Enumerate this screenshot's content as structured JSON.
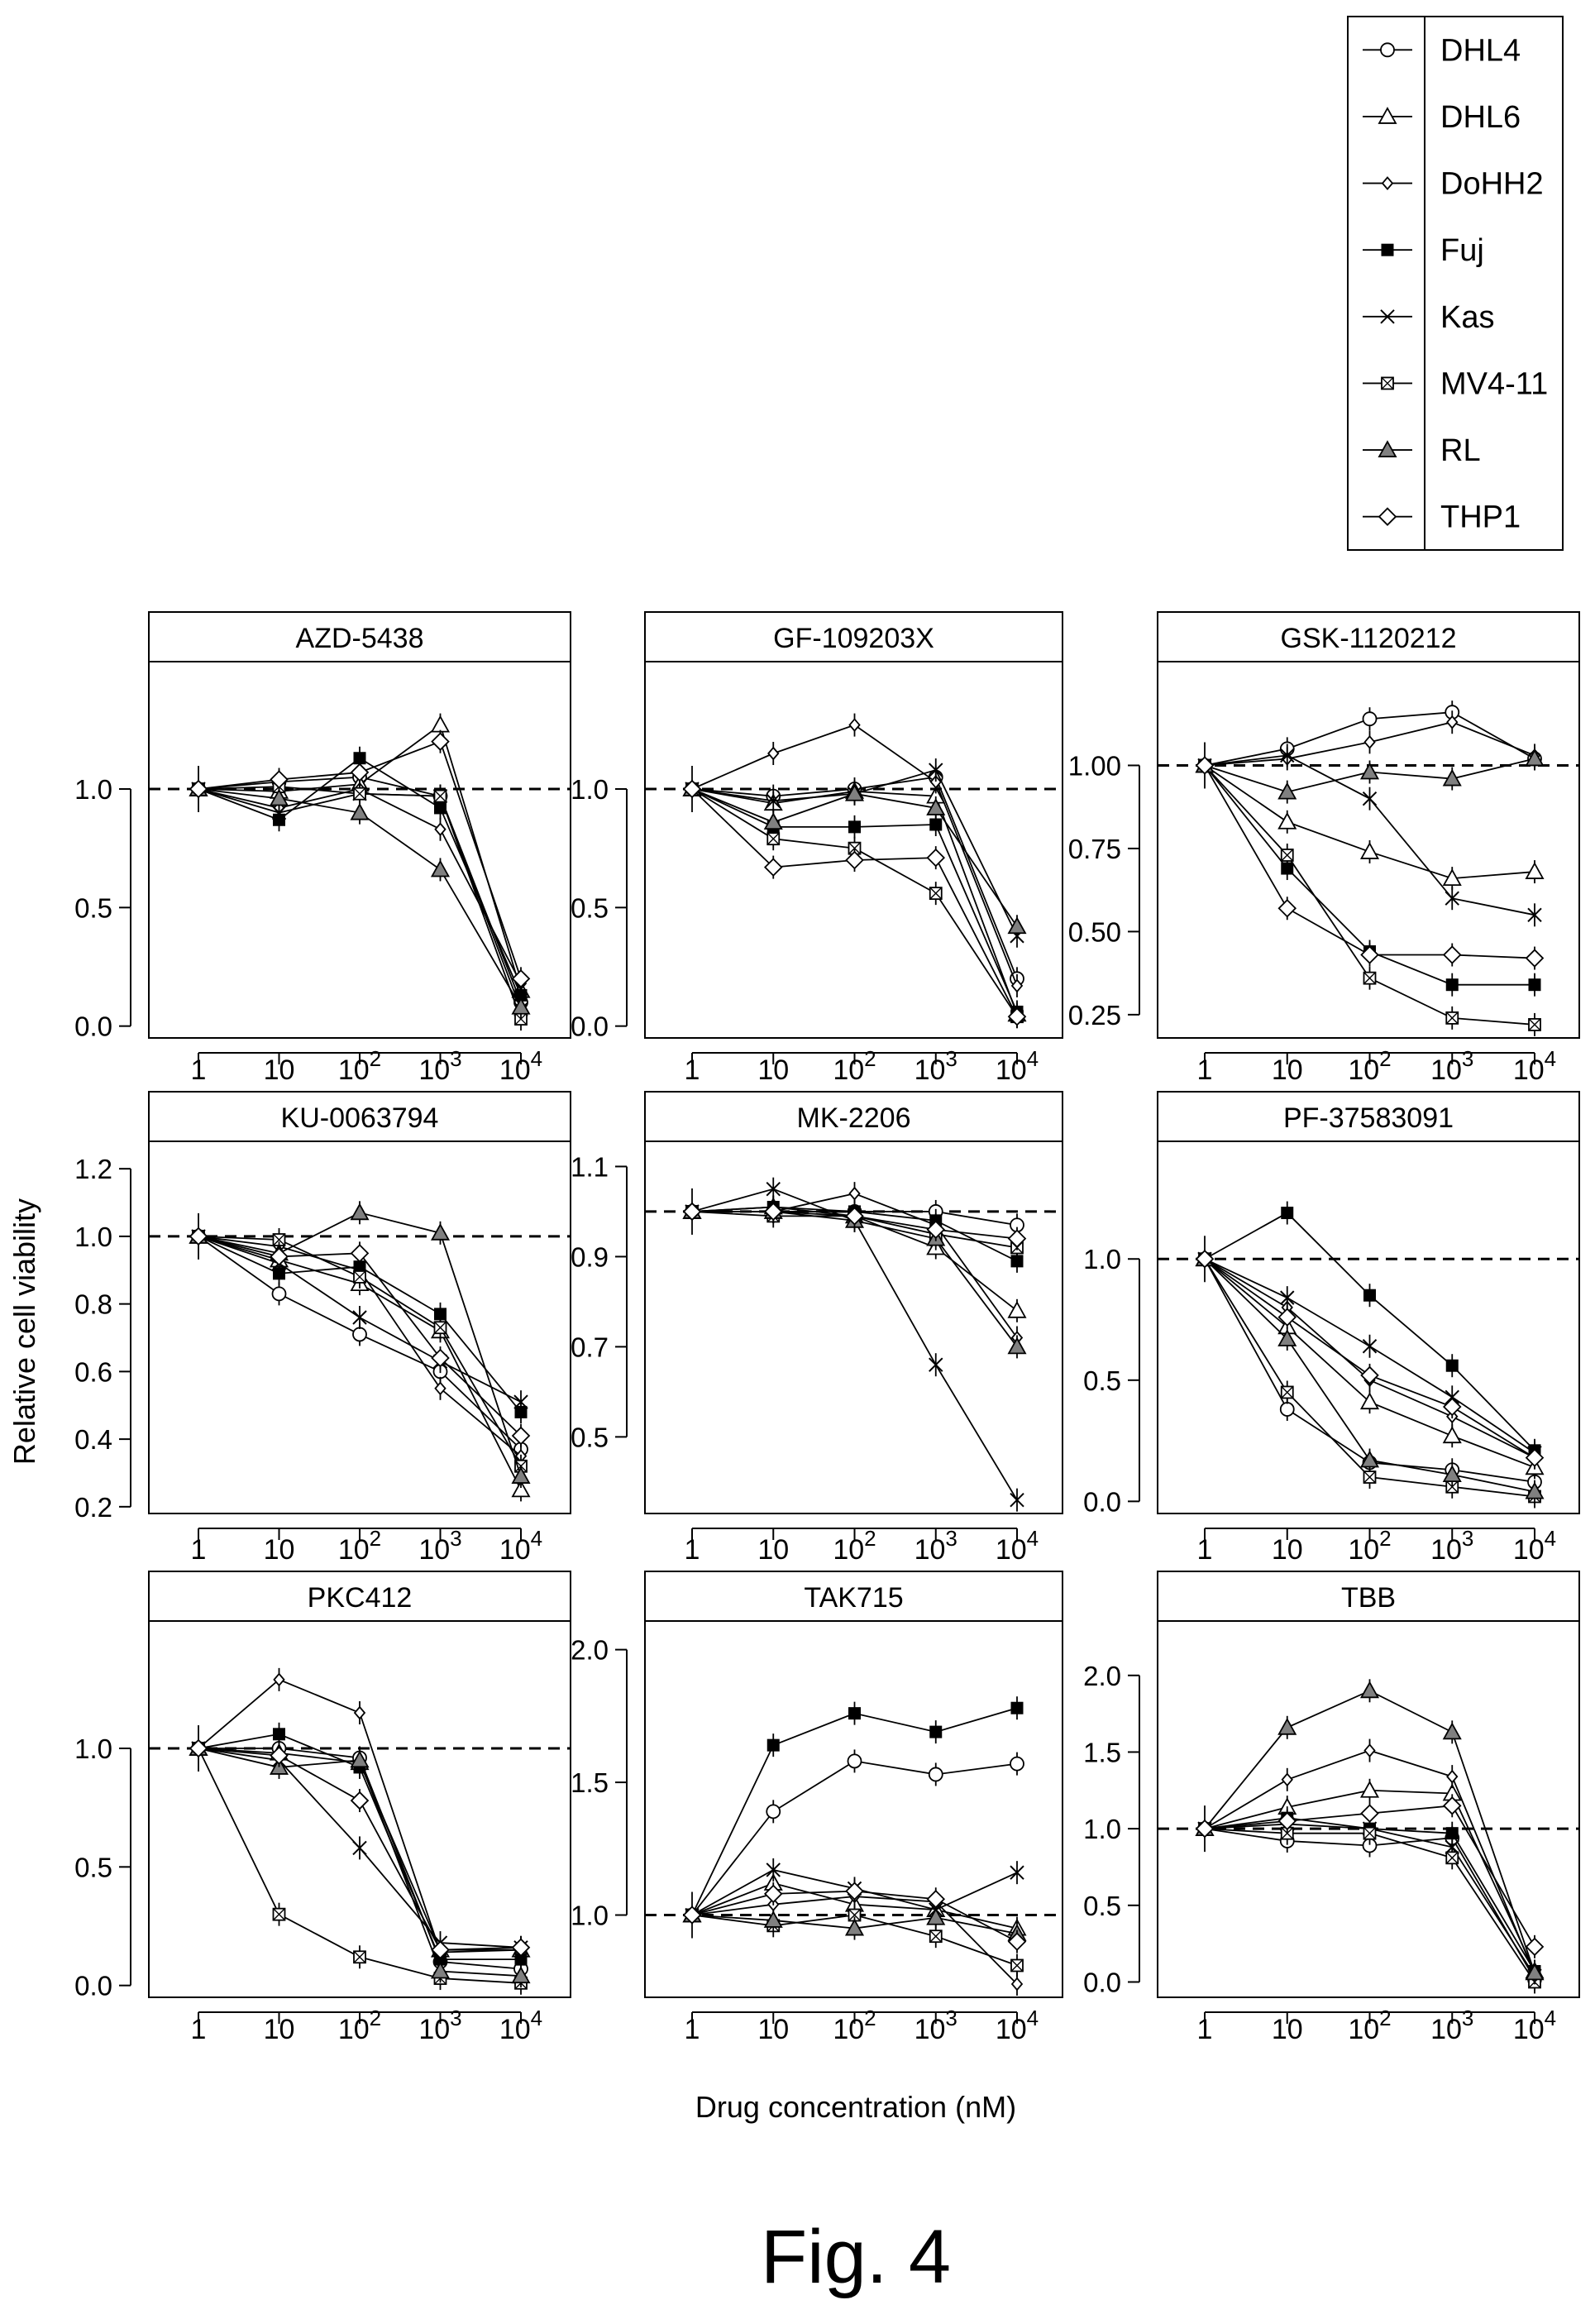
{
  "figure_caption": "Fig. 4",
  "colors": {
    "ink": "#000000",
    "rl_fill": "#808080",
    "background": "#ffffff"
  },
  "chart_data": {
    "type": "line",
    "xlabel": "Drug concentration (nM)",
    "ylabel": "Relative cell viability",
    "x_scale": "log",
    "x_ticks": [
      1,
      10,
      100,
      1000,
      10000
    ],
    "x_tick_labels": [
      {
        "base": "1",
        "exp": ""
      },
      {
        "base": "10",
        "exp": ""
      },
      {
        "base": "10",
        "exp": "2"
      },
      {
        "base": "10",
        "exp": "3"
      },
      {
        "base": "10",
        "exp": "4"
      }
    ],
    "reference_line": 1.0,
    "legend": {
      "placement": "top-right",
      "entries": [
        {
          "name": "DHL4",
          "marker": "circle-open"
        },
        {
          "name": "DHL6",
          "marker": "triangle-open"
        },
        {
          "name": "DoHH2",
          "marker": "diamond-small-open"
        },
        {
          "name": "Fuj",
          "marker": "square-filled"
        },
        {
          "name": "Kas",
          "marker": "x-cross"
        },
        {
          "name": "MV4-11",
          "marker": "square-crossed"
        },
        {
          "name": "RL",
          "marker": "triangle-filled"
        },
        {
          "name": "THP1",
          "marker": "diamond-large-open"
        }
      ]
    },
    "panels": [
      {
        "title": "AZD-5438",
        "ylim": [
          -0.05,
          1.45
        ],
        "yticks": [
          0.0,
          0.5,
          1.0
        ],
        "ytick_labels": [
          "0.0",
          "0.5",
          "1.0"
        ],
        "series": [
          {
            "name": "DHL4",
            "values": [
              1.0,
              1.03,
              1.05,
              0.97,
              0.1
            ]
          },
          {
            "name": "DHL6",
            "values": [
              1.0,
              0.99,
              1.02,
              1.27,
              0.15
            ]
          },
          {
            "name": "DoHH2",
            "values": [
              1.0,
              0.92,
              1.0,
              0.83,
              0.18
            ]
          },
          {
            "name": "Fuj",
            "values": [
              1.0,
              0.87,
              1.13,
              0.92,
              0.13
            ]
          },
          {
            "name": "Kas",
            "values": [
              1.0,
              0.9,
              0.98,
              0.97,
              0.07
            ]
          },
          {
            "name": "MV4-11",
            "values": [
              1.0,
              1.01,
              0.98,
              0.97,
              0.03
            ]
          },
          {
            "name": "RL",
            "values": [
              1.0,
              0.96,
              0.9,
              0.66,
              0.08
            ]
          },
          {
            "name": "THP1",
            "values": [
              1.0,
              1.04,
              1.07,
              1.2,
              0.2
            ]
          }
        ]
      },
      {
        "title": "GF-109203X",
        "ylim": [
          -0.05,
          1.45
        ],
        "yticks": [
          0.0,
          0.5,
          1.0
        ],
        "ytick_labels": [
          "0.0",
          "0.5",
          "1.0"
        ],
        "series": [
          {
            "name": "DHL4",
            "values": [
              1.0,
              0.97,
              1.0,
              1.05,
              0.2
            ]
          },
          {
            "name": "DHL6",
            "values": [
              1.0,
              0.94,
              0.99,
              0.97,
              0.05
            ]
          },
          {
            "name": "DoHH2",
            "values": [
              1.0,
              1.15,
              1.27,
              1.03,
              0.17
            ]
          },
          {
            "name": "Fuj",
            "values": [
              1.0,
              0.84,
              0.84,
              0.85,
              0.06
            ]
          },
          {
            "name": "Kas",
            "values": [
              1.0,
              0.95,
              0.98,
              1.08,
              0.38
            ]
          },
          {
            "name": "MV4-11",
            "values": [
              1.0,
              0.79,
              0.75,
              0.56,
              0.04
            ]
          },
          {
            "name": "RL",
            "values": [
              1.0,
              0.86,
              0.98,
              0.92,
              0.42
            ]
          },
          {
            "name": "THP1",
            "values": [
              1.0,
              0.67,
              0.7,
              0.71,
              0.04
            ]
          }
        ]
      },
      {
        "title": "GSK-1120212",
        "ylim": [
          0.18,
          1.25
        ],
        "yticks": [
          0.25,
          0.5,
          0.75,
          1.0
        ],
        "ytick_labels": [
          "0.25",
          "0.50",
          "0.75",
          "1.00"
        ],
        "series": [
          {
            "name": "DHL4",
            "values": [
              1.0,
              1.05,
              1.14,
              1.16,
              1.02
            ]
          },
          {
            "name": "DHL6",
            "values": [
              1.0,
              0.83,
              0.74,
              0.66,
              0.68
            ]
          },
          {
            "name": "DoHH2",
            "values": [
              1.0,
              1.02,
              1.07,
              1.13,
              1.03
            ]
          },
          {
            "name": "Fuj",
            "values": [
              1.0,
              0.69,
              0.44,
              0.34,
              0.34
            ]
          },
          {
            "name": "Kas",
            "values": [
              1.0,
              1.03,
              0.9,
              0.6,
              0.55
            ]
          },
          {
            "name": "MV4-11",
            "values": [
              1.0,
              0.73,
              0.36,
              0.24,
              0.22
            ]
          },
          {
            "name": "RL",
            "values": [
              1.0,
              0.92,
              0.98,
              0.96,
              1.02
            ]
          },
          {
            "name": "THP1",
            "values": [
              1.0,
              0.57,
              0.43,
              0.43,
              0.42
            ]
          }
        ]
      },
      {
        "title": "KU-0063794",
        "ylim": [
          0.18,
          1.22
        ],
        "yticks": [
          0.2,
          0.4,
          0.6,
          0.8,
          1.0,
          1.2
        ],
        "ytick_labels": [
          "0.2",
          "0.4",
          "0.6",
          "0.8",
          "1.0",
          "1.2"
        ],
        "series": [
          {
            "name": "DHL4",
            "values": [
              1.0,
              0.83,
              0.71,
              0.6,
              0.37
            ]
          },
          {
            "name": "DHL6",
            "values": [
              1.0,
              0.93,
              0.86,
              0.72,
              0.25
            ]
          },
          {
            "name": "DoHH2",
            "values": [
              1.0,
              0.97,
              0.9,
              0.55,
              0.35
            ]
          },
          {
            "name": "Fuj",
            "values": [
              1.0,
              0.89,
              0.91,
              0.77,
              0.48
            ]
          },
          {
            "name": "Kas",
            "values": [
              1.0,
              0.92,
              0.76,
              0.63,
              0.51
            ]
          },
          {
            "name": "MV4-11",
            "values": [
              1.0,
              0.99,
              0.88,
              0.73,
              0.32
            ]
          },
          {
            "name": "RL",
            "values": [
              1.0,
              0.95,
              1.07,
              1.01,
              0.29
            ]
          },
          {
            "name": "THP1",
            "values": [
              1.0,
              0.94,
              0.95,
              0.64,
              0.41
            ]
          }
        ]
      },
      {
        "title": "MK-2206",
        "ylim": [
          0.33,
          1.11
        ],
        "yticks": [
          0.5,
          0.7,
          0.9,
          1.1
        ],
        "ytick_labels": [
          "0.5",
          "0.7",
          "0.9",
          "1.1"
        ],
        "series": [
          {
            "name": "DHL4",
            "values": [
              1.0,
              1.0,
              1.0,
              1.0,
              0.97
            ]
          },
          {
            "name": "DHL6",
            "values": [
              1.0,
              1.01,
              0.99,
              0.92,
              0.78
            ]
          },
          {
            "name": "DoHH2",
            "values": [
              1.0,
              1.0,
              1.04,
              0.97,
              0.72
            ]
          },
          {
            "name": "Fuj",
            "values": [
              1.0,
              1.01,
              1.0,
              0.98,
              0.89
            ]
          },
          {
            "name": "Kas",
            "values": [
              1.0,
              1.05,
              0.98,
              0.66,
              0.36
            ]
          },
          {
            "name": "MV4-11",
            "values": [
              1.0,
              0.99,
              0.99,
              0.95,
              0.92
            ]
          },
          {
            "name": "RL",
            "values": [
              1.0,
              1.0,
              0.98,
              0.94,
              0.7
            ]
          },
          {
            "name": "THP1",
            "values": [
              1.0,
              1.0,
              0.99,
              0.96,
              0.94
            ]
          }
        ]
      },
      {
        "title": "PF-37583091",
        "ylim": [
          -0.05,
          1.4
        ],
        "yticks": [
          0.0,
          0.5,
          1.0
        ],
        "ytick_labels": [
          "0.0",
          "0.5",
          "1.0"
        ],
        "series": [
          {
            "name": "DHL4",
            "values": [
              1.0,
              0.38,
              0.16,
              0.13,
              0.08
            ]
          },
          {
            "name": "DHL6",
            "values": [
              1.0,
              0.72,
              0.41,
              0.27,
              0.14
            ]
          },
          {
            "name": "DoHH2",
            "values": [
              1.0,
              0.8,
              0.5,
              0.35,
              0.18
            ]
          },
          {
            "name": "Fuj",
            "values": [
              1.0,
              1.19,
              0.85,
              0.56,
              0.21
            ]
          },
          {
            "name": "Kas",
            "values": [
              1.0,
              0.84,
              0.64,
              0.43,
              0.2
            ]
          },
          {
            "name": "MV4-11",
            "values": [
              1.0,
              0.45,
              0.1,
              0.06,
              0.02
            ]
          },
          {
            "name": "RL",
            "values": [
              1.0,
              0.67,
              0.17,
              0.11,
              0.04
            ]
          },
          {
            "name": "THP1",
            "values": [
              1.0,
              0.76,
              0.52,
              0.39,
              0.18
            ]
          }
        ]
      },
      {
        "title": "PKC412",
        "ylim": [
          -0.05,
          1.45
        ],
        "yticks": [
          0.0,
          0.5,
          1.0
        ],
        "ytick_labels": [
          "0.0",
          "0.5",
          "1.0"
        ],
        "series": [
          {
            "name": "DHL4",
            "values": [
              1.0,
              1.0,
              0.96,
              0.1,
              0.07
            ]
          },
          {
            "name": "DHL6",
            "values": [
              1.0,
              0.98,
              0.94,
              0.15,
              0.15
            ]
          },
          {
            "name": "DoHH2",
            "values": [
              1.0,
              1.29,
              1.15,
              0.14,
              0.15
            ]
          },
          {
            "name": "Fuj",
            "values": [
              1.0,
              1.06,
              0.92,
              0.11,
              0.11
            ]
          },
          {
            "name": "Kas",
            "values": [
              1.0,
              0.95,
              0.58,
              0.18,
              0.16
            ]
          },
          {
            "name": "MV4-11",
            "values": [
              1.0,
              0.3,
              0.12,
              0.03,
              0.01
            ]
          },
          {
            "name": "RL",
            "values": [
              1.0,
              0.92,
              0.95,
              0.06,
              0.04
            ]
          },
          {
            "name": "THP1",
            "values": [
              1.0,
              0.97,
              0.78,
              0.15,
              0.16
            ]
          }
        ]
      },
      {
        "title": "TAK715",
        "ylim": [
          0.69,
          2.03
        ],
        "yticks": [
          1.0,
          1.5,
          2.0
        ],
        "ytick_labels": [
          "1.0",
          "1.5",
          "2.0"
        ],
        "series": [
          {
            "name": "DHL4",
            "values": [
              1.0,
              1.39,
              1.58,
              1.53,
              1.57
            ]
          },
          {
            "name": "DHL6",
            "values": [
              1.0,
              1.12,
              1.04,
              1.02,
              0.95
            ]
          },
          {
            "name": "DoHH2",
            "values": [
              1.0,
              1.04,
              1.07,
              1.05,
              0.74
            ]
          },
          {
            "name": "Fuj",
            "values": [
              1.0,
              1.64,
              1.76,
              1.69,
              1.78
            ]
          },
          {
            "name": "Kas",
            "values": [
              1.0,
              1.17,
              1.1,
              1.02,
              1.16
            ]
          },
          {
            "name": "MV4-11",
            "values": [
              1.0,
              0.96,
              1.0,
              0.92,
              0.81
            ]
          },
          {
            "name": "RL",
            "values": [
              1.0,
              0.98,
              0.95,
              0.99,
              0.93
            ]
          },
          {
            "name": "THP1",
            "values": [
              1.0,
              1.08,
              1.09,
              1.06,
              0.9
            ]
          }
        ]
      },
      {
        "title": "TBB",
        "ylim": [
          -0.1,
          2.22
        ],
        "yticks": [
          0.0,
          0.5,
          1.0,
          1.5,
          2.0
        ],
        "ytick_labels": [
          "0.0",
          "0.5",
          "1.0",
          "1.5",
          "2.0"
        ],
        "series": [
          {
            "name": "DHL4",
            "values": [
              1.0,
              0.92,
              0.89,
              0.94,
              0.02
            ]
          },
          {
            "name": "DHL6",
            "values": [
              1.0,
              1.14,
              1.25,
              1.23,
              0.07
            ]
          },
          {
            "name": "DoHH2",
            "values": [
              1.0,
              1.32,
              1.51,
              1.34,
              0.05
            ]
          },
          {
            "name": "Fuj",
            "values": [
              1.0,
              1.07,
              1.0,
              0.97,
              0.07
            ]
          },
          {
            "name": "Kas",
            "values": [
              1.0,
              1.03,
              1.0,
              0.88,
              0.04
            ]
          },
          {
            "name": "MV4-11",
            "values": [
              1.0,
              0.97,
              0.97,
              0.81,
              0.0
            ]
          },
          {
            "name": "RL",
            "values": [
              1.0,
              1.66,
              1.9,
              1.63,
              0.06
            ]
          },
          {
            "name": "THP1",
            "values": [
              1.0,
              1.05,
              1.1,
              1.15,
              0.23
            ]
          }
        ]
      }
    ]
  }
}
